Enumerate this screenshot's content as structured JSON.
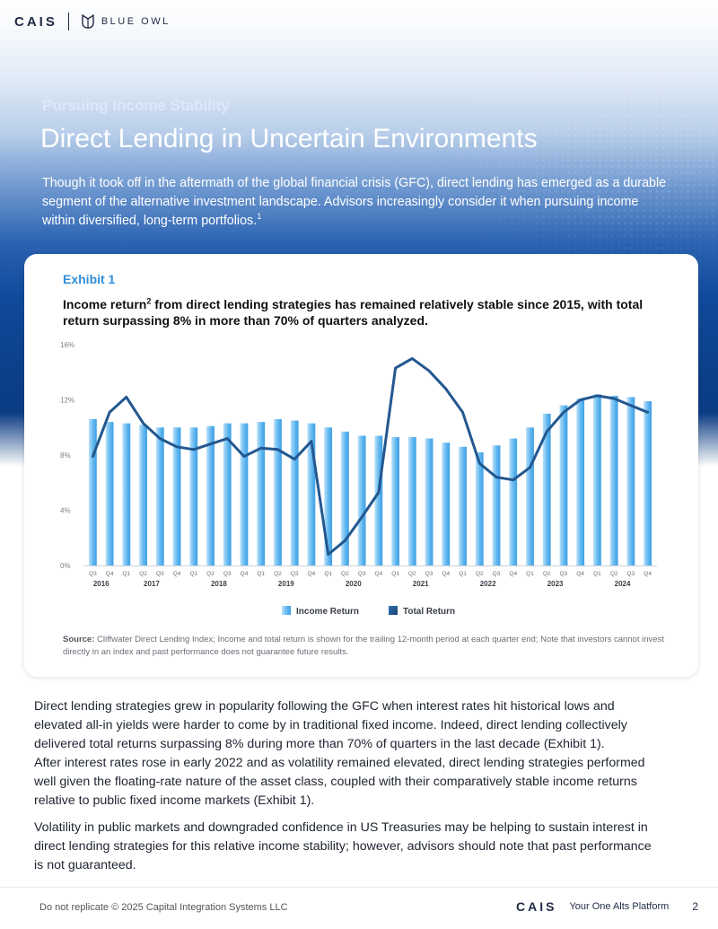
{
  "header": {
    "logo_text": "CAIS",
    "partner_logo": "BLUE OWL",
    "partner_icon": "owl-icon"
  },
  "hero": {
    "kicker": "Pursuing Income Stability",
    "title": "Direct Lending in Uncertain Environments",
    "intro": "Though it took off in the aftermath of the global financial crisis (GFC), direct lending has emerged as a durable segment of the alternative investment landscape. Advisors increasingly consider it when pursuing income within diversified, long-term portfolios.",
    "intro_footnote": "1"
  },
  "exhibit": {
    "label": "Exhibit 1",
    "heading_before": "Income return",
    "heading_footnote": "2",
    "heading_after": " from direct lending strategies has remained relatively stable since 2015, with total return surpassing 8% in more than 70% of quarters analyzed.",
    "source_label": "Source:",
    "source_text": " Cliffwater Direct Lending Index; Income and total return is shown for the trailing 12-month period at each quarter end; Note that investors cannot invest directly in an index and past performance does not guarantee future results."
  },
  "chart_data": {
    "type": "bar",
    "title": "",
    "xlabel": "",
    "ylabel": "",
    "ylim": [
      0,
      16
    ],
    "yticks": [
      "0%",
      "4%",
      "8%",
      "12%",
      "16%"
    ],
    "grid": false,
    "legend_position": "bottom-center",
    "categories": [
      "Q3",
      "Q4",
      "Q1",
      "Q2",
      "Q3",
      "Q4",
      "Q1",
      "Q2",
      "Q3",
      "Q4",
      "Q1",
      "Q2",
      "Q3",
      "Q4",
      "Q1",
      "Q2",
      "Q3",
      "Q4",
      "Q1",
      "Q2",
      "Q3",
      "Q4",
      "Q1",
      "Q2",
      "Q3",
      "Q4",
      "Q1",
      "Q2",
      "Q3",
      "Q4",
      "Q1",
      "Q2",
      "Q3",
      "Q4"
    ],
    "year_labels": [
      {
        "label": "2016",
        "start": 0,
        "end": 1
      },
      {
        "label": "2017",
        "start": 2,
        "end": 5
      },
      {
        "label": "2018",
        "start": 6,
        "end": 9
      },
      {
        "label": "2019",
        "start": 10,
        "end": 13
      },
      {
        "label": "2020",
        "start": 14,
        "end": 17
      },
      {
        "label": "2021",
        "start": 18,
        "end": 21
      },
      {
        "label": "2022",
        "start": 22,
        "end": 25
      },
      {
        "label": "2023",
        "start": 26,
        "end": 29
      },
      {
        "label": "2024",
        "start": 30,
        "end": 33
      }
    ],
    "series": [
      {
        "name": "Income Return",
        "type": "bar",
        "color": "#5fb7ef",
        "values": [
          10.6,
          10.4,
          10.3,
          10.2,
          10.0,
          10.0,
          10.0,
          10.1,
          10.3,
          10.3,
          10.4,
          10.6,
          10.5,
          10.3,
          10.0,
          9.7,
          9.4,
          9.4,
          9.3,
          9.3,
          9.2,
          8.9,
          8.6,
          8.2,
          8.7,
          9.2,
          10.0,
          11.0,
          11.6,
          12.1,
          12.4,
          12.3,
          12.2,
          11.9
        ]
      },
      {
        "name": "Total Return",
        "type": "line",
        "color": "#23578f",
        "values": [
          7.9,
          11.1,
          12.2,
          10.3,
          9.2,
          8.6,
          8.4,
          8.8,
          9.2,
          7.9,
          8.5,
          8.4,
          7.7,
          9.0,
          0.8,
          1.8,
          3.5,
          5.3,
          14.3,
          15.0,
          14.1,
          12.8,
          11.1,
          7.4,
          6.4,
          6.2,
          7.1,
          9.7,
          11.1,
          12.0,
          12.3,
          12.1,
          11.6,
          11.1
        ]
      }
    ]
  },
  "body": {
    "p1_lines": [
      "Direct lending strategies grew in popularity following the GFC when interest rates hit historical lows and",
      "elevated all-in yields were harder to come by in traditional fixed income. Indeed, direct lending collectively",
      "delivered total returns surpassing 8% during more than 70% of quarters in the last decade (Exhibit 1).",
      "After interest rates rose in early 2022 and as volatility remained elevated, direct lending strategies performed",
      "well given the floating-rate nature of the asset class, coupled with their comparatively stable income returns",
      "relative to public fixed income markets (Exhibit 1)."
    ],
    "p2_lines": [
      "Volatility in public markets and downgraded confidence in US Treasuries may be helping to sustain interest in",
      "direct lending strategies for this relative income stability; however, advisors should note that past performance",
      "is not guaranteed."
    ]
  },
  "footer": {
    "copyright": "Do not replicate © 2025 Capital Integration Systems LLC",
    "logo_text": "CAIS",
    "tagline": "Your One Alts Platform",
    "page_number": "2"
  }
}
